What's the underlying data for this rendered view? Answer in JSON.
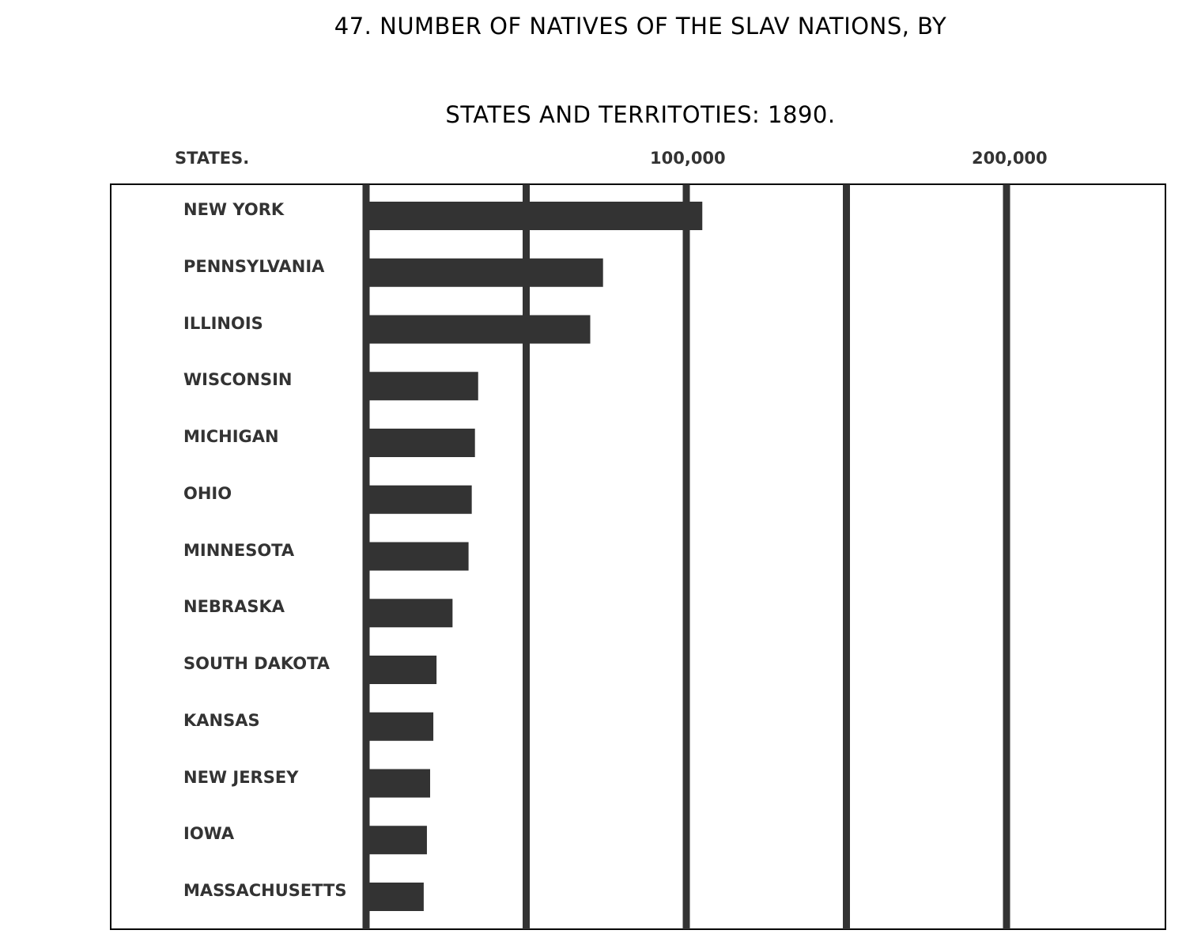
{
  "chart_data": {
    "type": "bar",
    "orientation": "horizontal",
    "title_line1": "47. NUMBER OF NATIVES OF THE SLAV NATIONS, BY",
    "title_line2": "STATES AND TERRITOTIES: 1890.",
    "category_header": "STATES.",
    "tick_labels": [
      "100,000",
      "200,000"
    ],
    "xlim": [
      0,
      250000
    ],
    "grid": true,
    "bar_color": "#333333",
    "categories": [
      "NEW YORK",
      "PENNSYLVANIA",
      "ILLINOIS",
      "WISCONSIN",
      "MICHIGAN",
      "OHIO",
      "MINNESOTA",
      "NEBRASKA",
      "SOUTH DAKOTA",
      "KANSAS",
      "NEW JERSEY",
      "IOWA",
      "MASSACHUSETTS"
    ],
    "values": [
      105000,
      74000,
      70000,
      35000,
      34000,
      33000,
      32000,
      27000,
      22000,
      21000,
      20000,
      19000,
      18000
    ]
  }
}
